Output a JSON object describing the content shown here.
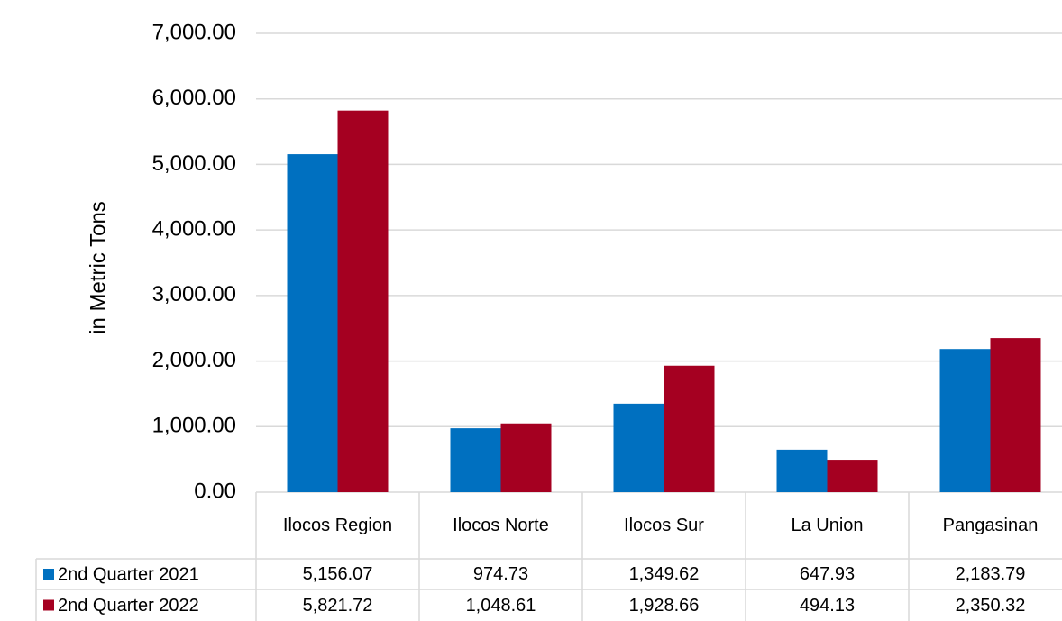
{
  "chart_data": {
    "type": "bar",
    "y_label": "in Metric Tons",
    "categories": [
      "Ilocos Region",
      "Ilocos Norte",
      "Ilocos Sur",
      "La Union",
      "Pangasinan"
    ],
    "series": [
      {
        "name": "2nd Quarter 2021",
        "color": "#0070c0",
        "values": [
          5156.07,
          974.73,
          1349.62,
          647.93,
          2183.79
        ],
        "value_labels": [
          "5,156.07",
          "974.73",
          "1,349.62",
          "647.93",
          "2,183.79"
        ]
      },
      {
        "name": "2nd Quarter 2022",
        "color": "#a50021",
        "values": [
          5821.72,
          1048.61,
          1928.66,
          494.13,
          2350.32
        ],
        "value_labels": [
          "5,821.72",
          "1,048.61",
          "1,928.66",
          "494.13",
          "2,350.32"
        ]
      }
    ],
    "ylim": [
      0,
      7000
    ],
    "yticks": [
      {
        "value": 0,
        "label": "0.00"
      },
      {
        "value": 1000,
        "label": "1,000.00"
      },
      {
        "value": 2000,
        "label": "2,000.00"
      },
      {
        "value": 3000,
        "label": "3,000.00"
      },
      {
        "value": 4000,
        "label": "4,000.00"
      },
      {
        "value": 5000,
        "label": "5,000.00"
      },
      {
        "value": 6000,
        "label": "6,000.00"
      },
      {
        "value": 7000,
        "label": "7,000.00"
      }
    ],
    "grid": true
  }
}
